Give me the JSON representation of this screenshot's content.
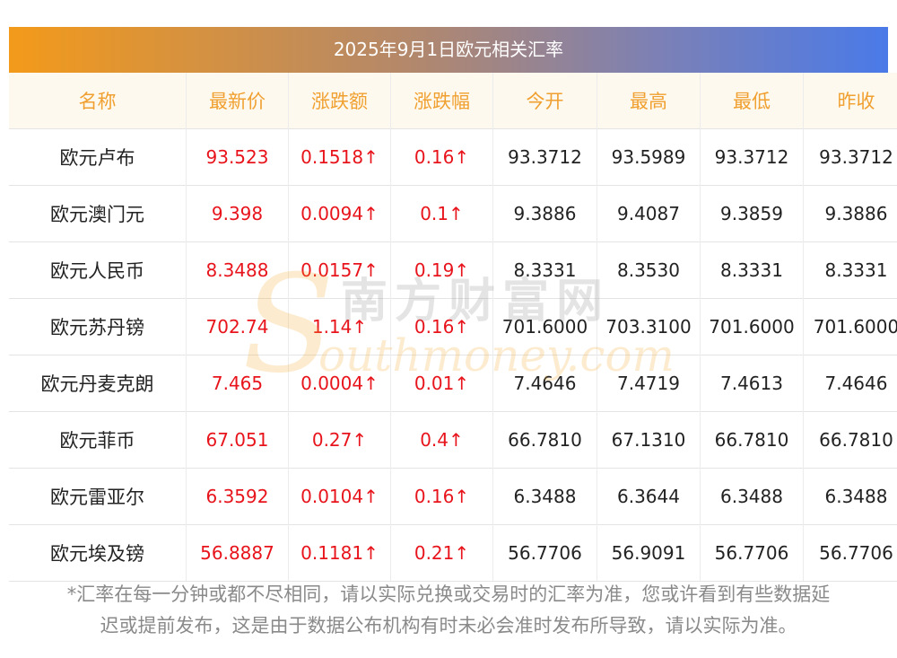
{
  "title": "2025年9月1日欧元相关汇率",
  "columns": [
    "名称",
    "最新价",
    "涨跌额",
    "涨跌幅",
    "今开",
    "最高",
    "最低",
    "昨收"
  ],
  "rows": [
    {
      "name": "欧元卢布",
      "latest": "93.523",
      "change": "0.1518↑",
      "pct": "0.16↑",
      "open": "93.3712",
      "high": "93.5989",
      "low": "93.3712",
      "prev": "93.3712"
    },
    {
      "name": "欧元澳门元",
      "latest": "9.398",
      "change": "0.0094↑",
      "pct": "0.1↑",
      "open": "9.3886",
      "high": "9.4087",
      "low": "9.3859",
      "prev": "9.3886"
    },
    {
      "name": "欧元人民币",
      "latest": "8.3488",
      "change": "0.0157↑",
      "pct": "0.19↑",
      "open": "8.3331",
      "high": "8.3530",
      "low": "8.3331",
      "prev": "8.3331"
    },
    {
      "name": "欧元苏丹镑",
      "latest": "702.74",
      "change": "1.14↑",
      "pct": "0.16↑",
      "open": "701.6000",
      "high": "703.3100",
      "low": "701.6000",
      "prev": "701.6000"
    },
    {
      "name": "欧元丹麦克朗",
      "latest": "7.465",
      "change": "0.0004↑",
      "pct": "0.01↑",
      "open": "7.4646",
      "high": "7.4719",
      "low": "7.4613",
      "prev": "7.4646"
    },
    {
      "name": "欧元菲币",
      "latest": "67.051",
      "change": "0.27↑",
      "pct": "0.4↑",
      "open": "66.7810",
      "high": "67.1310",
      "low": "66.7810",
      "prev": "66.7810"
    },
    {
      "name": "欧元雷亚尔",
      "latest": "6.3592",
      "change": "0.0104↑",
      "pct": "0.16↑",
      "open": "6.3488",
      "high": "6.3644",
      "low": "6.3488",
      "prev": "6.3488"
    },
    {
      "name": "欧元埃及镑",
      "latest": "56.8887",
      "change": "0.1181↑",
      "pct": "0.21↑",
      "open": "56.7706",
      "high": "56.9091",
      "low": "56.7706",
      "prev": "56.7706"
    }
  ],
  "watermark": {
    "cn": "南方财富网",
    "en": "outhmoney.com",
    "initial": "S"
  },
  "footnote_line1": "*汇率在每一分钟或都不尽相同，请以实际兑换或交易时的汇率为准，您或许看到有些数据延",
  "footnote_line2": "迟或提前发布，这是由于数据公布机构有时未必会准时发布所导致，请以实际为准。",
  "colors": {
    "up": "#e8141c",
    "header_text": "#f0a030",
    "header_bg": "#fef9ee"
  }
}
